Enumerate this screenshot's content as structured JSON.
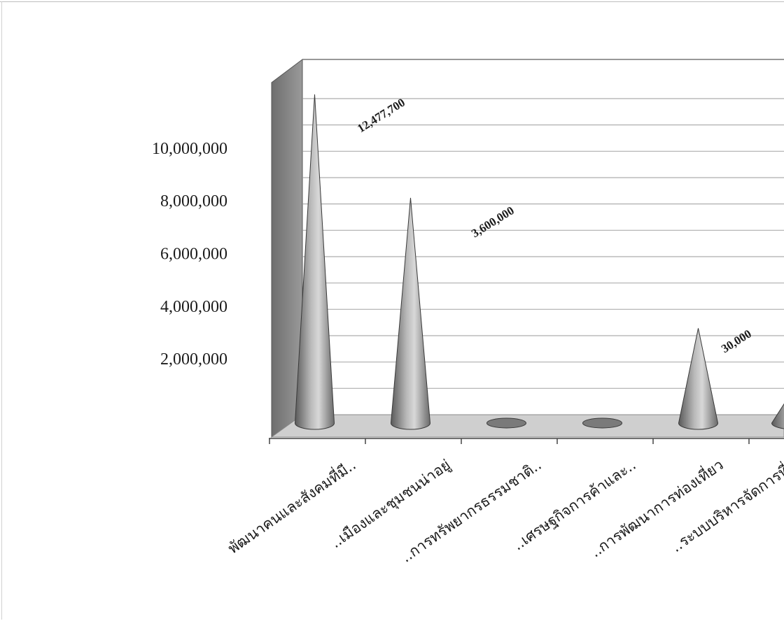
{
  "chart_data": {
    "type": "bar",
    "shape": "cone-3d",
    "title": "",
    "xlabel": "",
    "ylabel": "",
    "ylim": [
      0,
      12477700
    ],
    "yticks": [
      2000000,
      4000000,
      6000000,
      8000000,
      10000000
    ],
    "ytick_labels": [
      "2,000,000",
      "4,000,000",
      "6,000,000",
      "8,000,000",
      "10,000,000"
    ],
    "grid": true,
    "legend": "none",
    "categories": [
      "พัฒนาคนและสังคมที่มี..",
      "..เมืองและชุมชนน่าอยู่",
      "..การทรัพยากรธรรมชาติ..",
      "..เศรษฐกิจการค้าและ..",
      "..การพัฒนาการท่องเที่ยว",
      "..ระบบบริหารจัดการที่.."
    ],
    "values": [
      12477700,
      8550000,
      0,
      0,
      3600000,
      30000
    ],
    "data_labels": [
      "12,477,700",
      "",
      "",
      "",
      "3,600,000",
      "30,000"
    ],
    "colors": {
      "cone": "#8f8f8f",
      "wall": "#7b7b7b",
      "floor": "#cfcfcf",
      "grid": "#9a9a9a"
    }
  }
}
